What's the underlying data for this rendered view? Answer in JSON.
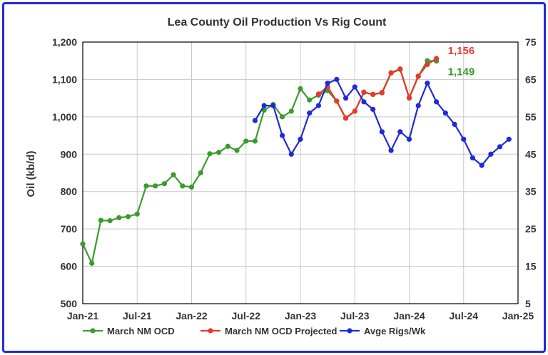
{
  "chart_data": {
    "type": "line",
    "title": "Lea County Oil Production Vs Rig Count",
    "ylabel": "Oil (kb/d)",
    "y2label": "",
    "x_ticks": [
      "Jan-21",
      "Jul-21",
      "Jan-22",
      "Jul-22",
      "Jan-23",
      "Jul-23",
      "Jan-24",
      "Jul-24",
      "Jan-25"
    ],
    "x_range": [
      "2021-01",
      "2025-01"
    ],
    "ylim": [
      500,
      1200
    ],
    "y_ticks": [
      "500",
      "600",
      "700",
      "800",
      "900",
      "1,000",
      "1,100",
      "1,200"
    ],
    "y2lim": [
      5,
      75
    ],
    "y2_ticks": [
      "5",
      "15",
      "25",
      "35",
      "45",
      "55",
      "65",
      "75"
    ],
    "grid": true,
    "legend_position": "bottom",
    "series": [
      {
        "name": "March NM OCD",
        "color": "#3c9a2e",
        "axis": "left",
        "x": [
          "2021-01",
          "2021-02",
          "2021-03",
          "2021-04",
          "2021-05",
          "2021-06",
          "2021-07",
          "2021-08",
          "2021-09",
          "2021-10",
          "2021-11",
          "2021-12",
          "2022-01",
          "2022-02",
          "2022-03",
          "2022-04",
          "2022-05",
          "2022-06",
          "2022-07",
          "2022-08",
          "2022-09",
          "2022-10",
          "2022-11",
          "2022-12",
          "2023-01",
          "2023-02",
          "2023-03",
          "2023-04",
          "2023-05",
          "2023-06",
          "2023-07",
          "2023-08",
          "2023-09",
          "2023-10",
          "2023-11",
          "2023-12",
          "2024-01",
          "2024-02",
          "2024-03",
          "2024-04"
        ],
        "values": [
          660,
          608,
          723,
          722,
          730,
          733,
          740,
          815,
          815,
          821,
          845,
          815,
          812,
          850,
          901,
          905,
          921,
          910,
          935,
          935,
          1018,
          1033,
          1000,
          1015,
          1075,
          1045,
          1058,
          1070,
          1042,
          996,
          1015,
          1065,
          1060,
          1064,
          1117,
          1127,
          1050,
          1108,
          1150,
          1149
        ]
      },
      {
        "name": "March NM OCD Projected",
        "color": "#e8392b",
        "axis": "left",
        "x": [
          "2023-03",
          "2023-04",
          "2023-05",
          "2023-06",
          "2023-07",
          "2023-08",
          "2023-09",
          "2023-10",
          "2023-11",
          "2023-12",
          "2024-01",
          "2024-02",
          "2024-03",
          "2024-04"
        ],
        "values": [
          1061,
          1080,
          1042,
          997,
          1015,
          1066,
          1060,
          1065,
          1118,
          1128,
          1051,
          1109,
          1140,
          1156
        ]
      },
      {
        "name": "Avge Rigs/Wk",
        "color": "#1f2bd6",
        "axis": "right",
        "x": [
          "2022-08",
          "2022-09",
          "2022-10",
          "2022-11",
          "2022-12",
          "2023-01",
          "2023-02",
          "2023-03",
          "2023-04",
          "2023-05",
          "2023-06",
          "2023-07",
          "2023-08",
          "2023-09",
          "2023-10",
          "2023-11",
          "2023-12",
          "2024-01",
          "2024-02",
          "2024-03",
          "2024-04",
          "2024-05",
          "2024-06",
          "2024-07",
          "2024-08",
          "2024-09",
          "2024-10",
          "2024-11",
          "2024-12"
        ],
        "values": [
          54,
          58,
          58,
          50,
          45,
          49,
          56,
          58,
          64,
          65,
          60,
          63,
          59,
          57,
          51,
          46,
          51,
          49,
          58,
          64,
          59,
          56,
          53,
          49,
          44,
          42,
          45,
          47,
          49
        ]
      }
    ],
    "annotations": [
      {
        "text": "1,156",
        "color": "#e8392b"
      },
      {
        "text": "1,149",
        "color": "#3c9a2e"
      }
    ]
  }
}
